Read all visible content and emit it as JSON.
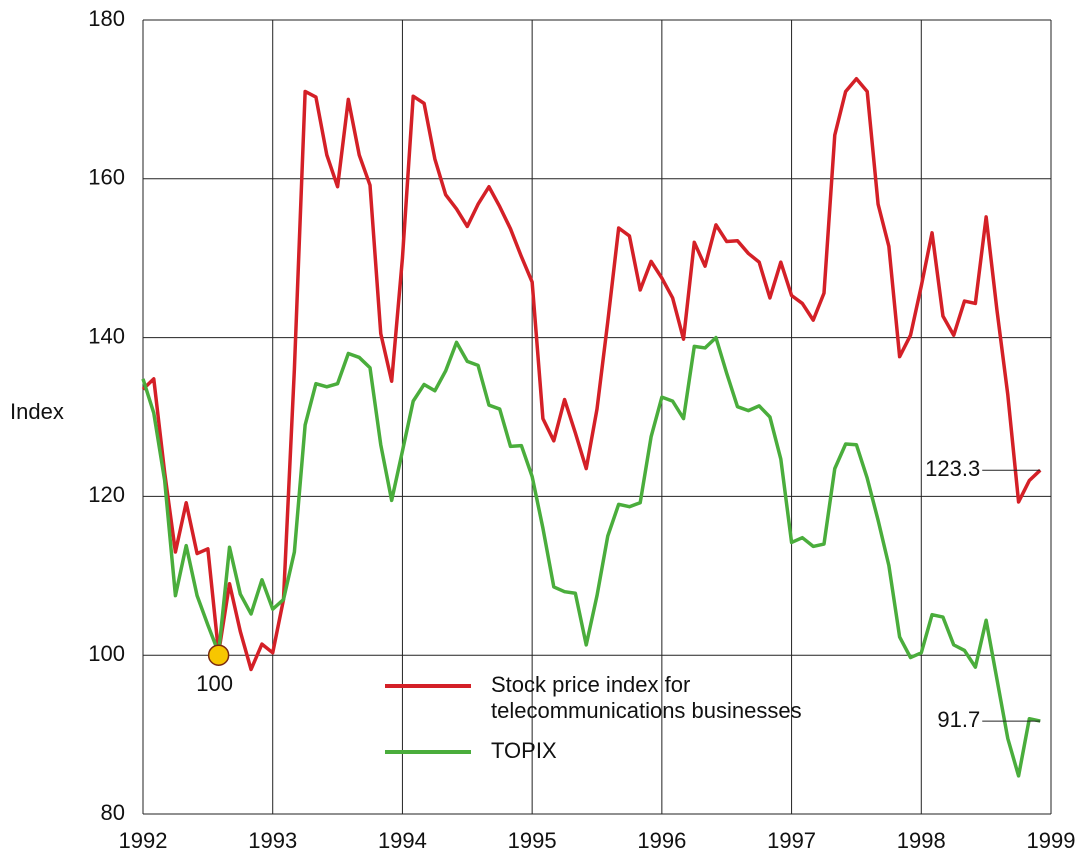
{
  "chart_data": {
    "type": "line",
    "y_label": "Index",
    "x": [
      1992,
      1992.083,
      1992.167,
      1992.25,
      1992.333,
      1992.417,
      1992.5,
      1992.583,
      1992.667,
      1992.75,
      1992.833,
      1992.917,
      1993,
      1993.083,
      1993.167,
      1993.25,
      1993.333,
      1993.417,
      1993.5,
      1993.583,
      1993.667,
      1993.75,
      1993.833,
      1993.917,
      1994,
      1994.083,
      1994.167,
      1994.25,
      1994.333,
      1994.417,
      1994.5,
      1994.583,
      1994.667,
      1994.75,
      1994.833,
      1994.917,
      1995,
      1995.083,
      1995.167,
      1995.25,
      1995.333,
      1995.417,
      1995.5,
      1995.583,
      1995.667,
      1995.75,
      1995.833,
      1995.917,
      1996,
      1996.083,
      1996.167,
      1996.25,
      1996.333,
      1996.417,
      1996.5,
      1996.583,
      1996.667,
      1996.75,
      1996.833,
      1996.917,
      1997,
      1997.083,
      1997.167,
      1997.25,
      1997.333,
      1997.417,
      1997.5,
      1997.583,
      1997.667,
      1997.75,
      1997.833,
      1997.917,
      1998,
      1998.083,
      1998.167,
      1998.25,
      1998.333,
      1998.417,
      1998.5,
      1998.583,
      1998.667,
      1998.75,
      1998.833,
      1998.917
    ],
    "series": [
      {
        "name": "Stock price index for telecommunications businesses",
        "color": "#d42027",
        "values": [
          133.5,
          134.8,
          123,
          113,
          119.2,
          112.8,
          113.4,
          100.3,
          109,
          103,
          98.2,
          101.4,
          100.3,
          107,
          136,
          171,
          170.3,
          163,
          159,
          170,
          163,
          159.2,
          140.5,
          134.5,
          150,
          170.4,
          169.5,
          162.5,
          158,
          156.2,
          154,
          156.8,
          159,
          156.5,
          153.7,
          150.2,
          147,
          129.8,
          127,
          132.2,
          128,
          123.5,
          131,
          142,
          153.8,
          152.8,
          146,
          149.6,
          147.5,
          145,
          139.8,
          152,
          149,
          154.2,
          152.1,
          152.2,
          150.6,
          149.5,
          145,
          149.5,
          145.3,
          144.3,
          142.2,
          145.6,
          165.5,
          171,
          172.6,
          171,
          156.8,
          151.5,
          137.6,
          140.3,
          146.5,
          153.2,
          142.7,
          140.3,
          144.6,
          144.3,
          155.2,
          143.5,
          132.8,
          119.3,
          122,
          123.3
        ]
      },
      {
        "name": "TOPIX",
        "color": "#4aad3c",
        "values": [
          134.8,
          130.5,
          122,
          107.5,
          113.8,
          107.5,
          103.8,
          100.3,
          113.6,
          107.7,
          105.2,
          109.5,
          105.8,
          107,
          113,
          129,
          134.2,
          133.8,
          134.2,
          138,
          137.5,
          136.2,
          126.5,
          119.5,
          125.7,
          132,
          134.1,
          133.3,
          135.8,
          139.4,
          137,
          136.5,
          131.5,
          131,
          126.3,
          126.4,
          122.5,
          116,
          108.6,
          108,
          107.8,
          101.3,
          107.5,
          115,
          119,
          118.7,
          119.2,
          127.5,
          132.5,
          132,
          129.8,
          138.9,
          138.7,
          140,
          135.5,
          131.3,
          130.8,
          131.4,
          130,
          124.7,
          114.2,
          114.8,
          113.7,
          114,
          123.5,
          126.6,
          126.5,
          122.3,
          117,
          111.3,
          102.3,
          99.7,
          100.3,
          105.1,
          104.8,
          101.3,
          100.6,
          98.5,
          104.4,
          97,
          89.5,
          84.8,
          92,
          91.7
        ]
      }
    ],
    "xlim": [
      1992,
      1999
    ],
    "xticks": [
      1992,
      1993,
      1994,
      1995,
      1996,
      1997,
      1998,
      1999
    ],
    "ylim": [
      80,
      180
    ],
    "yticks": [
      80,
      100,
      120,
      140,
      160,
      180
    ],
    "grid": true,
    "legend": "lower center",
    "annotations": [
      {
        "text": "100",
        "x": 1992.583,
        "y": 100
      },
      {
        "text": "123.3",
        "x": 1998.917,
        "y": 123.3
      },
      {
        "text": "91.7",
        "x": 1998.917,
        "y": 91.7
      }
    ]
  }
}
